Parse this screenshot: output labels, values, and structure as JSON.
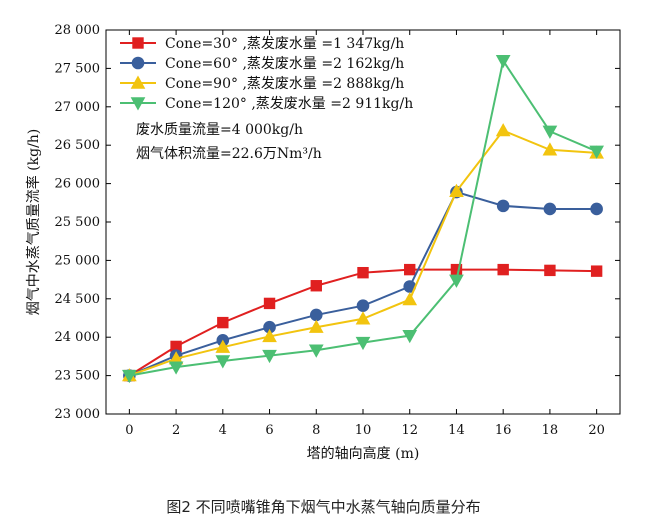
{
  "caption": "图2 不同喷嘴锥角下烟气中水蒸气轴向质量分布",
  "notes": [
    "废水质量流量=4 000kg/h",
    "烟气体积流量=22.6万Nm³/h"
  ],
  "chart_data": {
    "type": "line",
    "xlabel": "塔的轴向高度 (m)",
    "ylabel": "烟气中水蒸气质量流率 (kg/h)",
    "xlim": [
      -1,
      21
    ],
    "ylim": [
      23000,
      28000
    ],
    "xticks": [
      0,
      2,
      4,
      6,
      8,
      10,
      12,
      14,
      16,
      18,
      20
    ],
    "yticks": [
      23000,
      23500,
      24000,
      24500,
      25000,
      25500,
      26000,
      26500,
      27000,
      27500,
      28000
    ],
    "ytick_labels": [
      "23 000",
      "23 500",
      "24 000",
      "24 500",
      "25 000",
      "25 500",
      "26 000",
      "26 500",
      "27 000",
      "27 500",
      "28 000"
    ],
    "legend_position": "top-left",
    "x": [
      0,
      2,
      4,
      6,
      8,
      10,
      12,
      14,
      16,
      18,
      20
    ],
    "series": [
      {
        "name": "Cone=30°  ,蒸发废水量 =1 347kg/h",
        "color": "#e02020",
        "marker": "square",
        "values": [
          23500,
          23880,
          24190,
          24440,
          24670,
          24840,
          24880,
          24880,
          24880,
          24870,
          24860
        ]
      },
      {
        "name": "Cone=60°  ,蒸发废水量 =2 162kg/h",
        "color": "#3a5f9c",
        "marker": "circle",
        "values": [
          23500,
          23760,
          23960,
          24130,
          24290,
          24410,
          24660,
          25890,
          25710,
          25670,
          25670
        ]
      },
      {
        "name": "Cone=90°  ,蒸发废水量 =2 888kg/h",
        "color": "#f2c40f",
        "marker": "triangle-up",
        "values": [
          23500,
          23720,
          23870,
          24010,
          24130,
          24240,
          24490,
          25900,
          26690,
          26440,
          26400
        ]
      },
      {
        "name": "Cone=120°  ,蒸发废水量 =2 911kg/h",
        "color": "#4cbf73",
        "marker": "triangle-down",
        "values": [
          23500,
          23610,
          23690,
          23760,
          23830,
          23930,
          24020,
          24740,
          27600,
          26680,
          26420
        ]
      }
    ]
  }
}
